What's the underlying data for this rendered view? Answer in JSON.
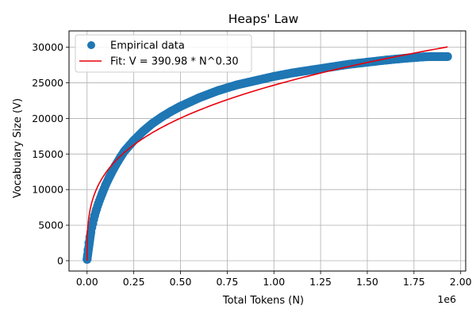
{
  "chart_data": {
    "type": "line",
    "title": "Heaps' Law",
    "xlabel": "Total Tokens (N)",
    "ylabel": "Vocabulary Size (V)",
    "x_offset_label": "1e6",
    "xlim": [
      -0.0967,
      2.0267
    ],
    "ylim": [
      -1450,
      32300
    ],
    "x_ticks": [
      0.0,
      0.25,
      0.5,
      0.75,
      1.0,
      1.25,
      1.5,
      1.75,
      2.0
    ],
    "x_tick_labels": [
      "0.00",
      "0.25",
      "0.50",
      "0.75",
      "1.00",
      "1.25",
      "1.50",
      "1.75",
      "2.00"
    ],
    "y_ticks": [
      0,
      5000,
      10000,
      15000,
      20000,
      25000,
      30000
    ],
    "y_tick_labels": [
      "0",
      "5000",
      "10000",
      "15000",
      "20000",
      "25000",
      "30000"
    ],
    "grid": true,
    "legend_position": "top-left",
    "series": [
      {
        "name": "Empirical data",
        "style": "markers",
        "color": "#1f77b4",
        "x": [
          0.0,
          0.002,
          0.005,
          0.01,
          0.015,
          0.02,
          0.03,
          0.04,
          0.05,
          0.06,
          0.08,
          0.1,
          0.12,
          0.15,
          0.18,
          0.2,
          0.25,
          0.3,
          0.35,
          0.4,
          0.45,
          0.5,
          0.55,
          0.6,
          0.7,
          0.8,
          0.9,
          1.0,
          1.1,
          1.2,
          1.3,
          1.4,
          1.5,
          1.6,
          1.7,
          1.75,
          1.8,
          1.85,
          1.9,
          1.93
        ],
        "y": [
          200,
          700,
          1500,
          2500,
          3300,
          4000,
          5200,
          6300,
          7200,
          8000,
          9400,
          10700,
          11800,
          13300,
          14600,
          15400,
          16900,
          18200,
          19300,
          20200,
          21000,
          21700,
          22300,
          22900,
          23900,
          24700,
          25300,
          25900,
          26400,
          26800,
          27200,
          27600,
          27900,
          28200,
          28450,
          28550,
          28650,
          28700,
          28700,
          28700
        ]
      },
      {
        "name": "Fit: V = 390.98 * N^0.30",
        "style": "line",
        "color": "#e8000b",
        "coef": 390.98,
        "exponent": 0.3,
        "x_range": [
          0.0,
          1.93
        ]
      }
    ]
  }
}
